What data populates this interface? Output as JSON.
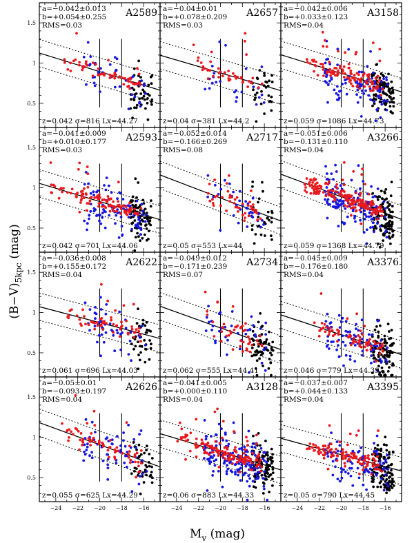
{
  "figure": {
    "ylabel_main": "(B−V)",
    "ylabel_sub": "5kpc",
    "ylabel_unit": " (mag)",
    "xlabel_main": "M",
    "xlabel_sub": "v",
    "xlabel_unit": " (mag)"
  },
  "chart_data": {
    "type": "scatter",
    "layout": "4 rows x 3 columns of panels, shared axes",
    "xlim": [
      -25.5,
      -14.5
    ],
    "ylim": [
      0.2,
      1.75
    ],
    "xticks": [
      -24,
      -22,
      -20,
      -18,
      -16
    ],
    "yticks": [
      0.5,
      1,
      1.5
    ],
    "xtick_labels": [
      "−24",
      "−22",
      "−20",
      "−18",
      "−16"
    ],
    "ytick_labels": [
      "0.5",
      "1",
      "1.5"
    ],
    "vertical_reference_lines_x": [
      -20,
      -18
    ],
    "legend_colors": {
      "red": "#e8191d",
      "blue": "#1616e0",
      "black": "#000000"
    },
    "panels": [
      {
        "name": "A2589",
        "a": "a=−0.042±0.013",
        "b": "b=+0.054±0.255",
        "rms": "RMS=0.03",
        "footer": "z=0.042  σ=816  Lx=44.27",
        "fit": {
          "slope": -0.042,
          "intercept": 0.054,
          "rms": 0.03,
          "dotted_offset": 0.17
        },
        "points": {
          "red_n": 60,
          "blue_n": 40,
          "black_n": 45,
          "xmin": -23.5,
          "xmax": -15.2
        }
      },
      {
        "name": "A2657",
        "a": "a=−0.04±0.01",
        "b": "b=+0.078±0.209",
        "rms": "RMS=0.03",
        "footer": "z=0.04  σ=381  Lx=44.2",
        "fit": {
          "slope": -0.04,
          "intercept": 0.078,
          "rms": 0.03,
          "dotted_offset": 0.17
        },
        "points": {
          "red_n": 45,
          "blue_n": 25,
          "black_n": 30,
          "xmin": -22.8,
          "xmax": -15.2
        }
      },
      {
        "name": "A3158",
        "a": "a=−0.042±0.006",
        "b": "b=+0.033±0.123",
        "rms": "RMS=0.04",
        "footer": "z=0.059  σ=1086  Lx=44.73",
        "fit": {
          "slope": -0.042,
          "intercept": 0.033,
          "rms": 0.04,
          "dotted_offset": 0.17
        },
        "points": {
          "red_n": 120,
          "blue_n": 100,
          "black_n": 90,
          "xmin": -23.2,
          "xmax": -15.2
        }
      },
      {
        "name": "A2593",
        "a": "a=−0.041±0.009",
        "b": "b=+0.010±0.177",
        "rms": "RMS=0.03",
        "footer": "z=0.042  σ=701  Lx=44.06",
        "fit": {
          "slope": -0.041,
          "intercept": 0.01,
          "rms": 0.03,
          "dotted_offset": 0.17
        },
        "points": {
          "red_n": 110,
          "blue_n": 90,
          "black_n": 80,
          "xmin": -24.6,
          "xmax": -15.2
        }
      },
      {
        "name": "A2717",
        "a": "a=−0.052±0.014",
        "b": "b=−0.166±0.269",
        "rms": "RMS=0.08",
        "footer": "z=0.05  σ=553  Lx=44",
        "fit": {
          "slope": -0.052,
          "intercept": -0.166,
          "rms": 0.08,
          "dotted_offset": 0.17
        },
        "points": {
          "red_n": 45,
          "blue_n": 35,
          "black_n": 30,
          "xmin": -21.5,
          "xmax": -15.2
        }
      },
      {
        "name": "A3266",
        "a": "a=−0.051±0.006",
        "b": "b=−0.131±0.110",
        "rms": "RMS=0.04",
        "footer": "z=0.059  σ=1368  Lx=44.79",
        "fit": {
          "slope": -0.051,
          "intercept": -0.131,
          "rms": 0.04,
          "dotted_offset": 0.17
        },
        "points": {
          "red_n": 180,
          "blue_n": 140,
          "black_n": 110,
          "xmin": -23.5,
          "xmax": -15.2
        }
      },
      {
        "name": "A2622",
        "a": "a=−0.036±0.008",
        "b": "b=+0.155±0.172",
        "rms": "RMS=0.04",
        "footer": "z=0.061  σ=696  Lx=44.03",
        "fit": {
          "slope": -0.036,
          "intercept": 0.155,
          "rms": 0.04,
          "dotted_offset": 0.17
        },
        "points": {
          "red_n": 60,
          "blue_n": 50,
          "black_n": 40,
          "xmin": -23.0,
          "xmax": -15.2
        }
      },
      {
        "name": "A2734",
        "a": "a=−0.049±0.012",
        "b": "b=−0.171±0.239",
        "rms": "RMS=0.07",
        "footer": "z=0.062  σ=555  Lx=44.41",
        "fit": {
          "slope": -0.049,
          "intercept": -0.171,
          "rms": 0.07,
          "dotted_offset": 0.17
        },
        "points": {
          "red_n": 45,
          "blue_n": 40,
          "black_n": 60,
          "xmin": -21.5,
          "xmax": -15.2
        }
      },
      {
        "name": "A3376",
        "a": "a=−0.045±0.009",
        "b": "b=−0.176±0.180",
        "rms": "RMS=0.04",
        "footer": "z=0.046  σ=779  Lx=44.39",
        "fit": {
          "slope": -0.045,
          "intercept": -0.176,
          "rms": 0.04,
          "dotted_offset": 0.17
        },
        "points": {
          "red_n": 70,
          "blue_n": 80,
          "black_n": 90,
          "xmin": -22.5,
          "xmax": -15.2
        }
      },
      {
        "name": "A2626",
        "a": "a=−0.05±0.01",
        "b": "b=−0.093±0.197",
        "rms": "RMS=0.04",
        "footer": "z=0.055  σ=625  Lx=44.29",
        "fit": {
          "slope": -0.05,
          "intercept": -0.093,
          "rms": 0.04,
          "dotted_offset": 0.17
        },
        "points": {
          "red_n": 70,
          "blue_n": 60,
          "black_n": 40,
          "xmin": -23.5,
          "xmax": -15.2
        }
      },
      {
        "name": "A3128",
        "a": "a=−0.041±0.005",
        "b": "b=+0.000±0.110",
        "rms": "RMS=0.04",
        "footer": "z=0.06  σ=883  Lx=44.33",
        "fit": {
          "slope": -0.041,
          "intercept": 0.0,
          "rms": 0.04,
          "dotted_offset": 0.17
        },
        "points": {
          "red_n": 150,
          "blue_n": 160,
          "black_n": 100,
          "xmin": -24.0,
          "xmax": -15.2
        }
      },
      {
        "name": "A3395",
        "a": "a=−0.037±0.007",
        "b": "b=+0.044±0.133",
        "rms": "RMS=0.04",
        "footer": "z=0.05  σ=790  Lx=44.45",
        "fit": {
          "slope": -0.037,
          "intercept": 0.044,
          "rms": 0.04,
          "dotted_offset": 0.17
        },
        "points": {
          "red_n": 120,
          "blue_n": 90,
          "black_n": 120,
          "xmin": -23.5,
          "xmax": -15.2
        }
      }
    ]
  }
}
